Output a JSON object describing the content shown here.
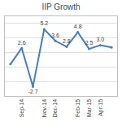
{
  "chart_data": {
    "type": "line",
    "title": "IIP Growth",
    "categories": [
      null,
      "Sep-14",
      null,
      "Nov-14",
      "Dec-14",
      null,
      "Feb-15",
      "Mar-15",
      "Apr-15",
      null
    ],
    "values": [
      0.4,
      2.6,
      -2.7,
      5.2,
      3.6,
      2.8,
      4.8,
      2.5,
      3.0,
      2.7
    ],
    "value_labels": [
      null,
      "2.6",
      "-2.7",
      "5.2",
      "3.6",
      "2.8",
      "4.8",
      "2.5",
      "3.0",
      null
    ],
    "data_labels": true,
    "color": "#4a7ebb",
    "marker": "circle",
    "ylim": [
      -4,
      7
    ],
    "yticks": [
      -4,
      -2,
      0,
      2,
      4,
      6
    ],
    "grid": true,
    "tick_labels": "x"
  }
}
